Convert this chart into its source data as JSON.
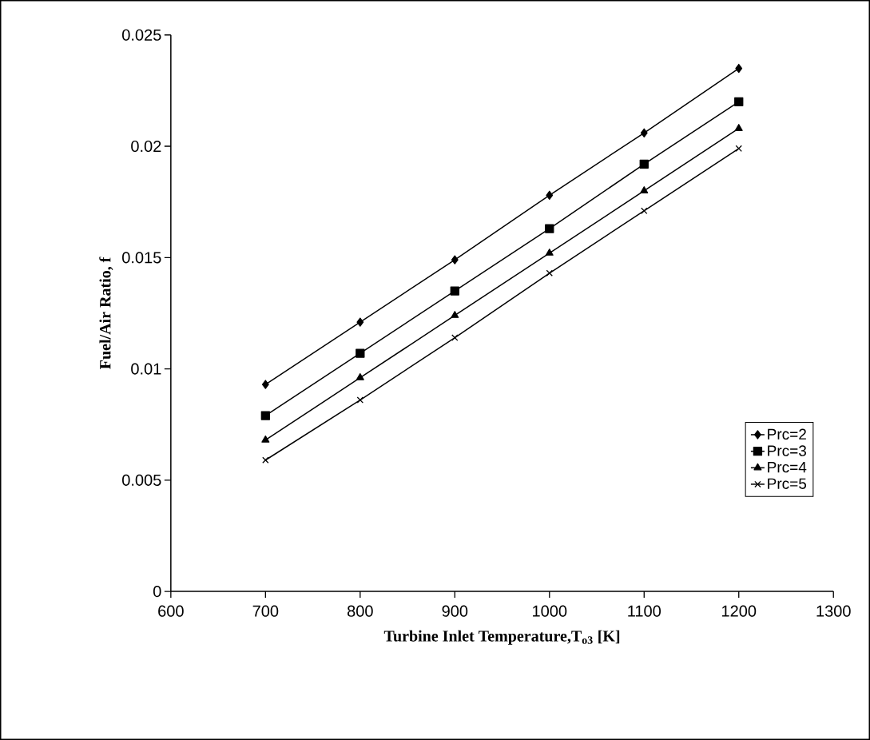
{
  "chart_data": {
    "type": "line",
    "xlabel": "Turbine Inlet Temperature,T$_{o3}$ [K]",
    "ylabel": "Fuel/Air Ratio, f",
    "x": [
      700,
      800,
      900,
      1000,
      1100,
      1200
    ],
    "xlim": [
      600,
      1300
    ],
    "xticks": [
      600,
      700,
      800,
      900,
      1000,
      1100,
      1200,
      1300
    ],
    "ylim": [
      0,
      0.025
    ],
    "yticks": [
      0,
      0.005,
      0.01,
      0.015,
      0.02,
      0.025
    ],
    "grid": false,
    "legend": "bottom right",
    "line_style": "solid",
    "series": [
      {
        "name": "Prc=2",
        "color": "#000000",
        "marker": "diamond",
        "values": [
          0.0093,
          0.0121,
          0.0149,
          0.0178,
          0.0206,
          0.0235
        ]
      },
      {
        "name": "Prc=3",
        "color": "#000000",
        "marker": "square",
        "values": [
          0.0079,
          0.0107,
          0.0135,
          0.0163,
          0.0192,
          0.022
        ]
      },
      {
        "name": "Prc=4",
        "color": "#000000",
        "marker": "triangle",
        "values": [
          0.0068,
          0.0096,
          0.0124,
          0.0152,
          0.018,
          0.0208
        ]
      },
      {
        "name": "Prc=5",
        "color": "#000000",
        "marker": "cross",
        "values": [
          0.0059,
          0.0086,
          0.0114,
          0.0143,
          0.0171,
          0.0199
        ]
      }
    ]
  }
}
